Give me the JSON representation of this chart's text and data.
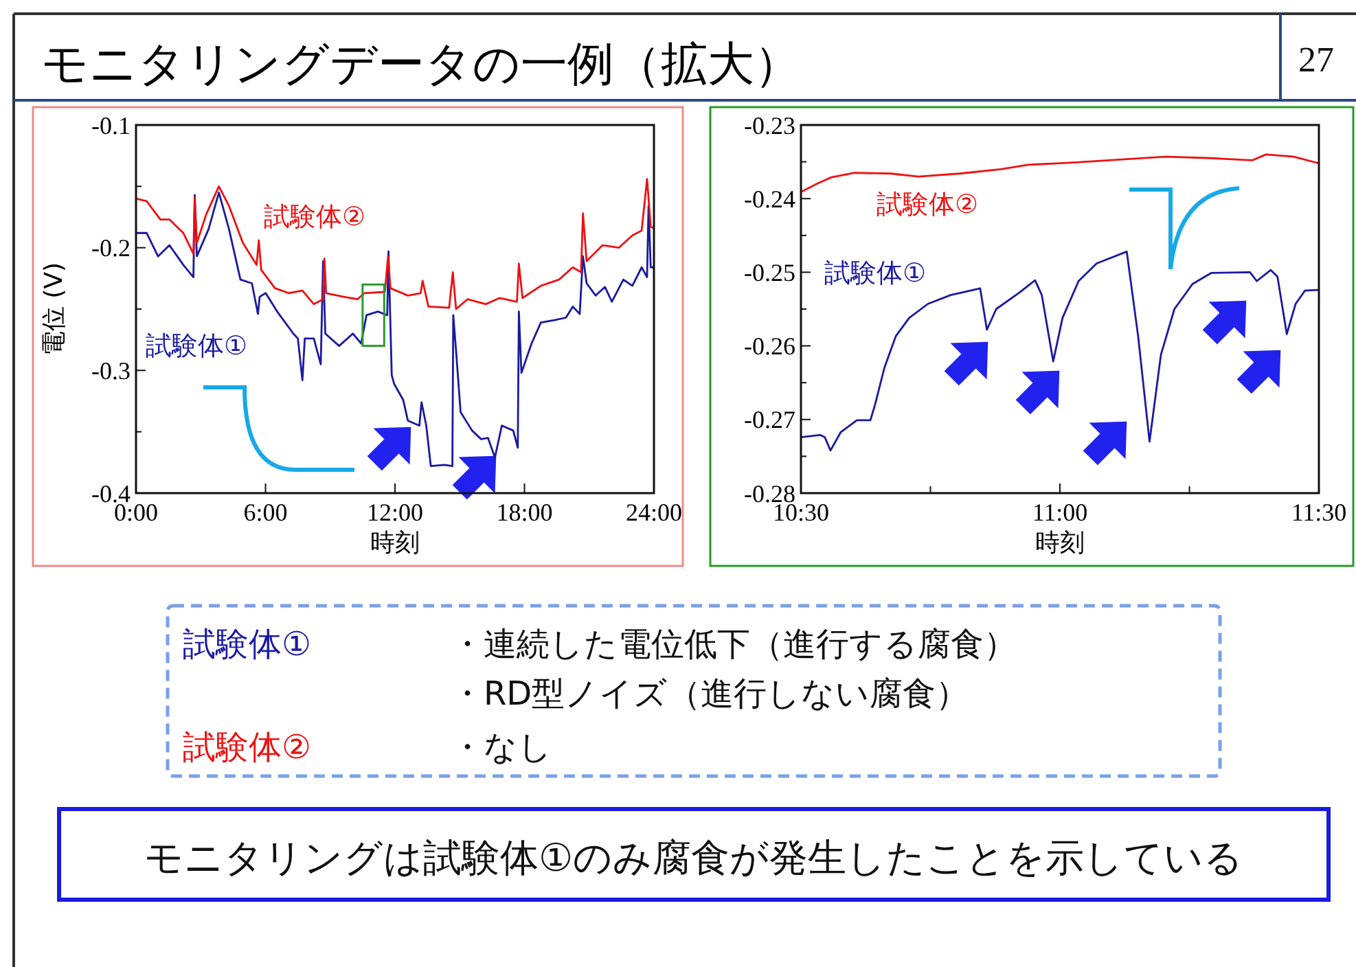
{
  "chart_data": [
    {
      "type": "line",
      "xlabel": "時刻",
      "ylabel": "電位 (V)",
      "xlim": [
        0,
        24
      ],
      "ylim": [
        -0.4,
        -0.1
      ],
      "xticks": [
        {
          "value": 0,
          "label": "0:00"
        },
        {
          "value": 6,
          "label": "6:00"
        },
        {
          "value": 12,
          "label": "12:00"
        },
        {
          "value": 18,
          "label": "18:00"
        },
        {
          "value": 24,
          "label": "24:00"
        }
      ],
      "yticks": [
        -0.4,
        {
          "value": -0.35,
          "label": null
        },
        -0.3,
        {
          "value": -0.25,
          "label": null
        },
        -0.2,
        {
          "value": -0.15,
          "label": null
        },
        -0.1
      ],
      "series": [
        {
          "name": "試験体①",
          "color": "#1a1aa0",
          "x": [
            0,
            0.49,
            1.02,
            1.55,
            2.19,
            2.66,
            2.72,
            2.82,
            3.36,
            3.84,
            4.31,
            4.84,
            5.37,
            5.65,
            5.73,
            6.01,
            6.54,
            7.29,
            7.5,
            7.71,
            7.82,
            8.24,
            8.56,
            8.67,
            8.77,
            9.41,
            10.05,
            10.43,
            10.68,
            11.21,
            11.64,
            11.7,
            11.85,
            11.96,
            12.38,
            12.6,
            13.13,
            13.23,
            13.45,
            13.66,
            14.29,
            14.66,
            14.7,
            14.83,
            15.04,
            15.57,
            15.99,
            16.31,
            16.63,
            16.95,
            17.48,
            17.69,
            17.74,
            17.86,
            18.33,
            18.76,
            19.39,
            19.92,
            20.24,
            20.56,
            20.71,
            20.88,
            21.3,
            21.73,
            22.05,
            22.58,
            23.0,
            23.43,
            23.68,
            23.75,
            23.85,
            24
          ],
          "values": [
            -0.188,
            -0.188,
            -0.207,
            -0.198,
            -0.214,
            -0.224,
            -0.157,
            -0.207,
            -0.185,
            -0.155,
            -0.185,
            -0.226,
            -0.229,
            -0.254,
            -0.24,
            -0.237,
            -0.252,
            -0.27,
            -0.274,
            -0.308,
            -0.274,
            -0.274,
            -0.295,
            -0.211,
            -0.27,
            -0.28,
            -0.27,
            -0.278,
            -0.255,
            -0.252,
            -0.255,
            -0.203,
            -0.304,
            -0.311,
            -0.324,
            -0.341,
            -0.345,
            -0.326,
            -0.345,
            -0.378,
            -0.377,
            -0.378,
            -0.255,
            -0.284,
            -0.334,
            -0.349,
            -0.356,
            -0.355,
            -0.371,
            -0.345,
            -0.349,
            -0.363,
            -0.252,
            -0.302,
            -0.278,
            -0.261,
            -0.259,
            -0.257,
            -0.248,
            -0.254,
            -0.207,
            -0.229,
            -0.239,
            -0.232,
            -0.244,
            -0.226,
            -0.231,
            -0.216,
            -0.224,
            -0.166,
            -0.216,
            -0.216
          ]
        },
        {
          "name": "試験体②",
          "color": "#ee1111",
          "x": [
            0,
            0.49,
            1.13,
            1.55,
            2.19,
            2.66,
            2.72,
            2.82,
            3.25,
            3.84,
            4.31,
            4.95,
            5.59,
            5.69,
            5.8,
            6.44,
            7.07,
            7.71,
            8.24,
            8.67,
            8.73,
            8.81,
            9.62,
            10.26,
            10.58,
            11.53,
            11.68,
            11.79,
            12.6,
            13.19,
            13.28,
            13.55,
            14.51,
            14.68,
            14.83,
            15.36,
            16.21,
            16.84,
            17.65,
            17.74,
            17.91,
            18.76,
            19.6,
            20.24,
            20.62,
            20.71,
            20.88,
            21.62,
            22.37,
            23.0,
            23.43,
            23.68,
            23.85,
            24
          ],
          "values": [
            -0.16,
            -0.162,
            -0.177,
            -0.177,
            -0.188,
            -0.205,
            -0.159,
            -0.196,
            -0.173,
            -0.15,
            -0.166,
            -0.196,
            -0.214,
            -0.194,
            -0.218,
            -0.233,
            -0.237,
            -0.235,
            -0.246,
            -0.242,
            -0.209,
            -0.237,
            -0.24,
            -0.242,
            -0.237,
            -0.236,
            -0.207,
            -0.233,
            -0.239,
            -0.237,
            -0.227,
            -0.248,
            -0.249,
            -0.22,
            -0.25,
            -0.242,
            -0.246,
            -0.241,
            -0.244,
            -0.213,
            -0.241,
            -0.231,
            -0.226,
            -0.216,
            -0.22,
            -0.172,
            -0.211,
            -0.198,
            -0.2,
            -0.19,
            -0.186,
            -0.144,
            -0.183,
            -0.184
          ]
        }
      ]
    },
    {
      "type": "line",
      "xlabel": "時刻",
      "xlim": [
        10.5,
        11.5
      ],
      "ylim": [
        -0.28,
        -0.23
      ],
      "xticks": [
        {
          "value": 10.5,
          "label": "10:30"
        },
        {
          "value": 10.75,
          "label": null
        },
        {
          "value": 11,
          "label": "11:00"
        },
        {
          "value": 11.25,
          "label": null
        },
        {
          "value": 11.5,
          "label": "11:30"
        }
      ],
      "yticks": [
        -0.28,
        {
          "value": -0.275,
          "label": null
        },
        -0.27,
        {
          "value": -0.265,
          "label": null
        },
        -0.26,
        {
          "value": -0.255,
          "label": null
        },
        -0.25,
        {
          "value": -0.245,
          "label": null
        },
        -0.24,
        {
          "value": -0.235,
          "label": null
        },
        -0.23
      ],
      "series": [
        {
          "name": "試験体①",
          "color": "#1a1aa0",
          "x": [
            10.5,
            10.537,
            10.546,
            10.557,
            10.577,
            10.608,
            10.634,
            10.643,
            10.661,
            10.683,
            10.709,
            10.745,
            10.789,
            10.846,
            10.859,
            10.877,
            10.921,
            10.952,
            10.965,
            10.987,
            11.005,
            11.036,
            11.071,
            11.129,
            11.151,
            11.173,
            11.195,
            11.221,
            11.256,
            11.292,
            11.367,
            11.38,
            11.407,
            11.42,
            11.438,
            11.455,
            11.473,
            11.5
          ],
          "values": [
            -0.2724,
            -0.2721,
            -0.2724,
            -0.2742,
            -0.2717,
            -0.2701,
            -0.2701,
            -0.268,
            -0.263,
            -0.2587,
            -0.2562,
            -0.2543,
            -0.2531,
            -0.2522,
            -0.2578,
            -0.255,
            -0.2528,
            -0.2511,
            -0.2531,
            -0.2621,
            -0.2562,
            -0.2512,
            -0.2488,
            -0.2472,
            -0.2587,
            -0.273,
            -0.2612,
            -0.255,
            -0.2516,
            -0.2501,
            -0.25,
            -0.2512,
            -0.2497,
            -0.2506,
            -0.2584,
            -0.2543,
            -0.2525,
            -0.2524
          ]
        },
        {
          "name": "試験体②",
          "color": "#ee1111",
          "x": [
            10.5,
            10.533,
            10.559,
            10.603,
            10.674,
            10.727,
            10.806,
            10.886,
            10.939,
            11.027,
            11.115,
            11.204,
            11.292,
            11.371,
            11.398,
            11.451,
            11.5
          ],
          "values": [
            -0.2391,
            -0.2379,
            -0.2371,
            -0.2365,
            -0.2366,
            -0.237,
            -0.2366,
            -0.236,
            -0.2354,
            -0.2351,
            -0.2347,
            -0.2343,
            -0.2345,
            -0.2348,
            -0.234,
            -0.2343,
            -0.2352
          ]
        }
      ]
    },
    {
      "type": "other",
      "title": "モニタリングデータの一例（拡大）",
      "annotations": [
        "27",
        "試験体①",
        "・連続した電位低下（進行する腐食）",
        "・RD型ノイズ（進行しない腐食）",
        "試験体②",
        "・なし",
        "モニタリングは試験体①のみ腐食が発生したことを示している"
      ]
    }
  ]
}
